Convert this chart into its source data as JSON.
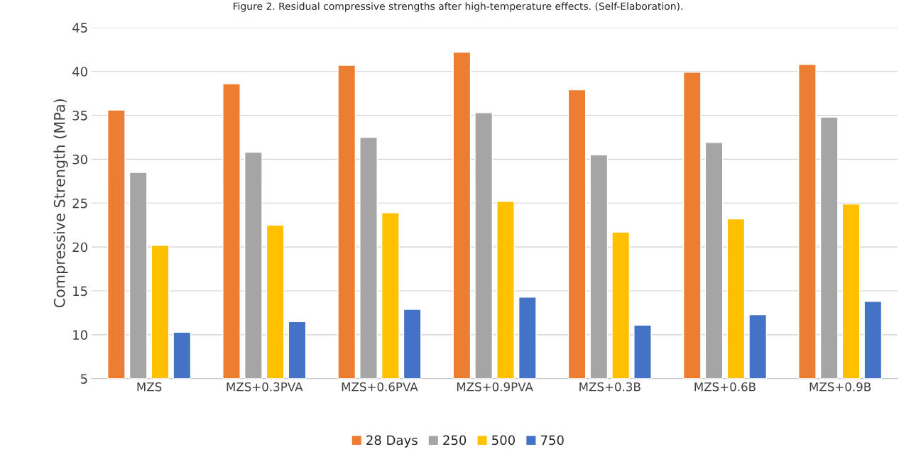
{
  "chart_data": {
    "type": "bar",
    "title": "Figure 2. Residual compressive strengths after high-temperature effects. (Self-Elaboration).",
    "ylabel": "Compressive Strength (MPa)",
    "categories": [
      "MZS",
      "MZS+0.3PVA",
      "MZS+0.6PVA",
      "MZS+0.9PVA",
      "MZS+0.3B",
      "MZS+0.6B",
      "MZS+0.9B"
    ],
    "series": [
      {
        "name": "28 Days",
        "color": "#ed7d31",
        "values": [
          35.6,
          38.6,
          40.7,
          42.2,
          37.9,
          39.9,
          40.8
        ]
      },
      {
        "name": "250",
        "color": "#a5a5a5",
        "values": [
          28.5,
          30.8,
          32.5,
          35.3,
          30.5,
          31.9,
          34.8
        ]
      },
      {
        "name": "500",
        "color": "#ffc000",
        "values": [
          20.2,
          22.5,
          23.9,
          25.2,
          21.7,
          23.2,
          24.9
        ]
      },
      {
        "name": "750",
        "color": "#4472c4",
        "values": [
          10.3,
          11.5,
          12.9,
          14.3,
          11.1,
          12.3,
          13.8
        ]
      }
    ],
    "ylim": [
      5,
      45
    ],
    "yticks": [
      5,
      10,
      15,
      20,
      25,
      30,
      35,
      40,
      45
    ],
    "grid": "y",
    "legend": "bottom"
  }
}
